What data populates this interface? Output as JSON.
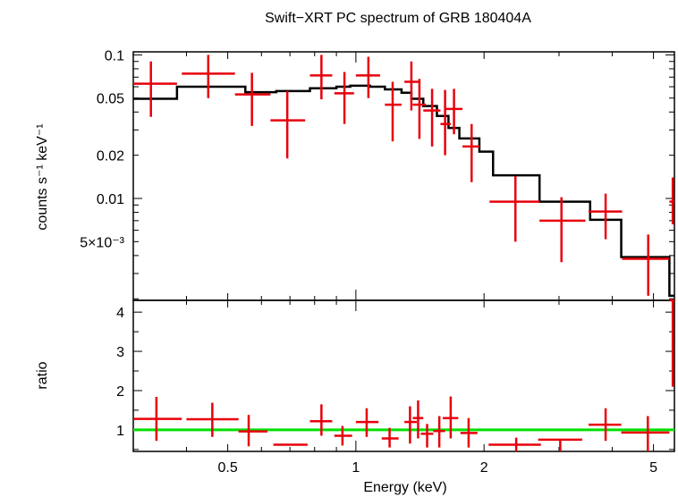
{
  "chart_data": [
    {
      "type": "line",
      "panel": "spectrum",
      "title": "Swift−XRT PC spectrum of GRB 180404A",
      "xlabel": "",
      "ylabel": "counts s⁻¹ keV⁻¹",
      "xscale": "log",
      "yscale": "log",
      "xlim": [
        0.3,
        5.6
      ],
      "ylim": [
        0.00195,
        0.105
      ],
      "y_ticks": [
        {
          "value": 0.1,
          "label": "0.1"
        },
        {
          "value": 0.05,
          "label": "0.05"
        },
        {
          "value": 0.02,
          "label": "0.02"
        },
        {
          "value": 0.01,
          "label": "0.01"
        },
        {
          "value": 0.005,
          "label": "5×10⁻³"
        }
      ],
      "series": [
        {
          "name": "data",
          "color": "#e8000b",
          "points": [
            {
              "x": 0.33,
              "xlo": 0.3,
              "xhi": 0.38,
              "y": 0.063,
              "ylo": 0.037,
              "yhi": 0.09
            },
            {
              "x": 0.45,
              "xlo": 0.39,
              "xhi": 0.52,
              "y": 0.074,
              "ylo": 0.05,
              "yhi": 0.1
            },
            {
              "x": 0.57,
              "xlo": 0.52,
              "xhi": 0.63,
              "y": 0.053,
              "ylo": 0.032,
              "yhi": 0.075
            },
            {
              "x": 0.69,
              "xlo": 0.63,
              "xhi": 0.76,
              "y": 0.035,
              "ylo": 0.019,
              "yhi": 0.056
            },
            {
              "x": 0.83,
              "xlo": 0.78,
              "xhi": 0.88,
              "y": 0.072,
              "ylo": 0.049,
              "yhi": 0.1
            },
            {
              "x": 0.94,
              "xlo": 0.89,
              "xhi": 0.99,
              "y": 0.054,
              "ylo": 0.033,
              "yhi": 0.076
            },
            {
              "x": 1.07,
              "xlo": 1.0,
              "xhi": 1.14,
              "y": 0.072,
              "ylo": 0.05,
              "yhi": 0.097
            },
            {
              "x": 1.22,
              "xlo": 1.17,
              "xhi": 1.28,
              "y": 0.045,
              "ylo": 0.025,
              "yhi": 0.065
            },
            {
              "x": 1.35,
              "xlo": 1.3,
              "xhi": 1.41,
              "y": 0.065,
              "ylo": 0.041,
              "yhi": 0.09
            },
            {
              "x": 1.41,
              "xlo": 1.36,
              "xhi": 1.46,
              "y": 0.045,
              "ylo": 0.026,
              "yhi": 0.068
            },
            {
              "x": 1.51,
              "xlo": 1.44,
              "xhi": 1.58,
              "y": 0.041,
              "ylo": 0.023,
              "yhi": 0.058
            },
            {
              "x": 1.62,
              "xlo": 1.58,
              "xhi": 1.67,
              "y": 0.033,
              "ylo": 0.02,
              "yhi": 0.057
            },
            {
              "x": 1.7,
              "xlo": 1.62,
              "xhi": 1.78,
              "y": 0.042,
              "ylo": 0.028,
              "yhi": 0.058
            },
            {
              "x": 1.87,
              "xlo": 1.78,
              "xhi": 1.95,
              "y": 0.023,
              "ylo": 0.013,
              "yhi": 0.033
            },
            {
              "x": 2.37,
              "xlo": 2.06,
              "xhi": 2.7,
              "y": 0.0095,
              "ylo": 0.005,
              "yhi": 0.0143
            },
            {
              "x": 3.04,
              "xlo": 2.7,
              "xhi": 3.46,
              "y": 0.007,
              "ylo": 0.0036,
              "yhi": 0.0102
            },
            {
              "x": 3.86,
              "xlo": 3.52,
              "xhi": 4.22,
              "y": 0.0081,
              "ylo": 0.0052,
              "yhi": 0.0108
            },
            {
              "x": 4.86,
              "xlo": 4.22,
              "xhi": 5.45,
              "y": 0.0038,
              "ylo": 0.0021,
              "yhi": 0.0056
            },
            {
              "x": 5.55,
              "xlo": 5.45,
              "xhi": 5.6,
              "y": 0.0095,
              "ylo": 0.0066,
              "yhi": 0.014
            }
          ]
        },
        {
          "name": "model",
          "color": "#000000",
          "steps": [
            {
              "x0": 0.3,
              "x1": 0.38,
              "y": 0.0495
            },
            {
              "x0": 0.38,
              "x1": 0.55,
              "y": 0.06
            },
            {
              "x0": 0.55,
              "x1": 0.65,
              "y": 0.055
            },
            {
              "x0": 0.65,
              "x1": 0.78,
              "y": 0.056
            },
            {
              "x0": 0.78,
              "x1": 0.9,
              "y": 0.0585
            },
            {
              "x0": 0.9,
              "x1": 0.97,
              "y": 0.06
            },
            {
              "x0": 0.97,
              "x1": 1.08,
              "y": 0.061
            },
            {
              "x0": 1.08,
              "x1": 1.17,
              "y": 0.06
            },
            {
              "x0": 1.17,
              "x1": 1.28,
              "y": 0.0575
            },
            {
              "x0": 1.28,
              "x1": 1.35,
              "y": 0.0545
            },
            {
              "x0": 1.35,
              "x1": 1.44,
              "y": 0.0495
            },
            {
              "x0": 1.44,
              "x1": 1.55,
              "y": 0.044
            },
            {
              "x0": 1.55,
              "x1": 1.65,
              "y": 0.0375
            },
            {
              "x0": 1.65,
              "x1": 1.75,
              "y": 0.031
            },
            {
              "x0": 1.75,
              "x1": 1.95,
              "y": 0.0262
            },
            {
              "x0": 1.95,
              "x1": 2.1,
              "y": 0.0212
            },
            {
              "x0": 2.1,
              "x1": 2.7,
              "y": 0.0145
            },
            {
              "x0": 2.7,
              "x1": 3.55,
              "y": 0.0095
            },
            {
              "x0": 3.55,
              "x1": 4.2,
              "y": 0.0071
            },
            {
              "x0": 4.2,
              "x1": 5.45,
              "y": 0.0039
            },
            {
              "x0": 5.45,
              "x1": 5.6,
              "y": 0.0021
            }
          ]
        }
      ]
    },
    {
      "type": "scatter",
      "panel": "ratio",
      "xlabel": "Energy (keV)",
      "ylabel": "ratio",
      "xscale": "log",
      "yscale": "linear",
      "xlim": [
        0.3,
        5.6
      ],
      "ylim": [
        0.45,
        4.3
      ],
      "y_ticks": [
        {
          "value": 1,
          "label": "1"
        },
        {
          "value": 2,
          "label": "2"
        },
        {
          "value": 3,
          "label": "3"
        },
        {
          "value": 4,
          "label": "4"
        }
      ],
      "x_ticks": [
        {
          "value": 0.5,
          "label": "0.5"
        },
        {
          "value": 1,
          "label": "1"
        },
        {
          "value": 2,
          "label": "2"
        },
        {
          "value": 5,
          "label": "5"
        }
      ],
      "reference_line": {
        "y": 1,
        "color": "#00e000"
      },
      "series": [
        {
          "name": "ratio",
          "color": "#e8000b",
          "points": [
            {
              "x": 0.34,
              "xlo": 0.3,
              "xhi": 0.39,
              "y": 1.28,
              "ylo": 0.72,
              "yhi": 1.84
            },
            {
              "x": 0.46,
              "xlo": 0.4,
              "xhi": 0.53,
              "y": 1.27,
              "ylo": 0.82,
              "yhi": 1.69
            },
            {
              "x": 0.56,
              "xlo": 0.53,
              "xhi": 0.62,
              "y": 0.96,
              "ylo": 0.58,
              "yhi": 1.38
            },
            {
              "x": 0.7,
              "xlo": 0.64,
              "xhi": 0.77,
              "y": 0.62,
              "ylo": 0.62,
              "yhi": 0.62
            },
            {
              "x": 0.83,
              "xlo": 0.78,
              "xhi": 0.88,
              "y": 1.22,
              "ylo": 0.85,
              "yhi": 1.65
            },
            {
              "x": 0.93,
              "xlo": 0.89,
              "xhi": 0.98,
              "y": 0.85,
              "ylo": 0.6,
              "yhi": 1.1
            },
            {
              "x": 1.06,
              "xlo": 1.0,
              "xhi": 1.13,
              "y": 1.2,
              "ylo": 0.82,
              "yhi": 1.55
            },
            {
              "x": 1.2,
              "xlo": 1.15,
              "xhi": 1.26,
              "y": 0.78,
              "ylo": 0.55,
              "yhi": 1.05
            },
            {
              "x": 1.34,
              "xlo": 1.3,
              "xhi": 1.39,
              "y": 1.2,
              "ylo": 0.65,
              "yhi": 1.6
            },
            {
              "x": 1.4,
              "xlo": 1.36,
              "xhi": 1.44,
              "y": 1.3,
              "ylo": 0.78,
              "yhi": 1.75
            },
            {
              "x": 1.47,
              "xlo": 1.42,
              "xhi": 1.52,
              "y": 0.9,
              "ylo": 0.55,
              "yhi": 1.15
            },
            {
              "x": 1.57,
              "xlo": 1.52,
              "xhi": 1.62,
              "y": 0.97,
              "ylo": 0.55,
              "yhi": 1.35
            },
            {
              "x": 1.67,
              "xlo": 1.6,
              "xhi": 1.74,
              "y": 1.3,
              "ylo": 0.78,
              "yhi": 1.85
            },
            {
              "x": 1.84,
              "xlo": 1.76,
              "xhi": 1.93,
              "y": 0.92,
              "ylo": 0.55,
              "yhi": 1.3
            },
            {
              "x": 2.38,
              "xlo": 2.05,
              "xhi": 2.72,
              "y": 0.62,
              "ylo": 0.45,
              "yhi": 0.8
            },
            {
              "x": 3.02,
              "xlo": 2.68,
              "xhi": 3.4,
              "y": 0.75,
              "ylo": 0.45,
              "yhi": 0.75
            },
            {
              "x": 3.86,
              "xlo": 3.52,
              "xhi": 4.2,
              "y": 1.13,
              "ylo": 0.72,
              "yhi": 1.55
            },
            {
              "x": 4.85,
              "xlo": 4.2,
              "xhi": 5.45,
              "y": 0.93,
              "ylo": 0.45,
              "yhi": 1.35
            },
            {
              "x": 5.55,
              "xlo": 5.45,
              "xhi": 5.6,
              "y": 4.3,
              "ylo": 2.1,
              "yhi": 4.3
            }
          ]
        }
      ]
    }
  ]
}
